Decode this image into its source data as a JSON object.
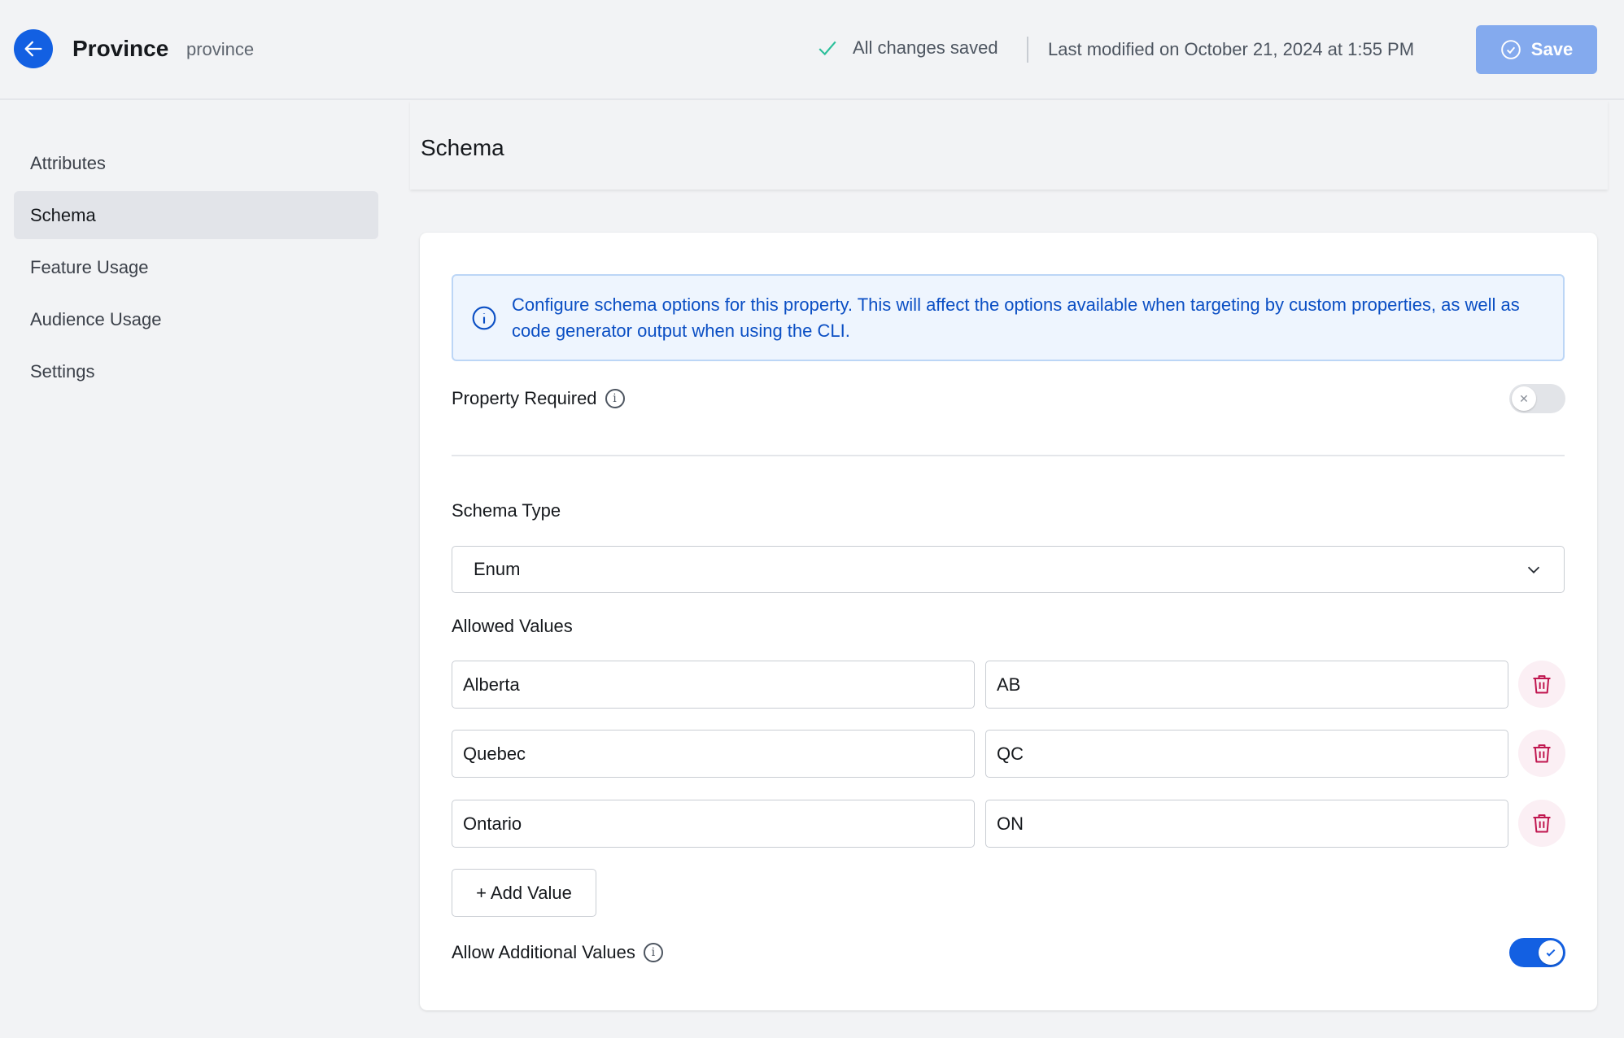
{
  "header": {
    "title": "Province",
    "key": "province",
    "status": "All changes saved",
    "last_modified": "Last modified on October 21, 2024 at 1:55 PM",
    "save_label": "Save"
  },
  "sidebar": {
    "items": [
      {
        "label": "Attributes"
      },
      {
        "label": "Schema",
        "selected": true
      },
      {
        "label": "Feature Usage"
      },
      {
        "label": "Audience Usage"
      },
      {
        "label": "Settings"
      }
    ]
  },
  "section": {
    "title": "Schema"
  },
  "info": "Configure schema options for this property. This will affect the options available when targeting by custom properties, as well as code generator output when using the CLI.",
  "property_required": {
    "label": "Property Required",
    "enabled": false
  },
  "schema_type": {
    "label": "Schema Type",
    "value": "Enum"
  },
  "allowed_values": {
    "label": "Allowed Values",
    "rows": [
      {
        "name": "Alberta",
        "value": "AB"
      },
      {
        "name": "Quebec",
        "value": "QC"
      },
      {
        "name": "Ontario",
        "value": "ON"
      }
    ],
    "add_label": "+ Add Value"
  },
  "allow_additional": {
    "label": "Allow Additional Values",
    "enabled": true
  },
  "colors": {
    "accent": "#1360e2",
    "delete": "#c0164f",
    "info_text": "#0b4fc4"
  }
}
